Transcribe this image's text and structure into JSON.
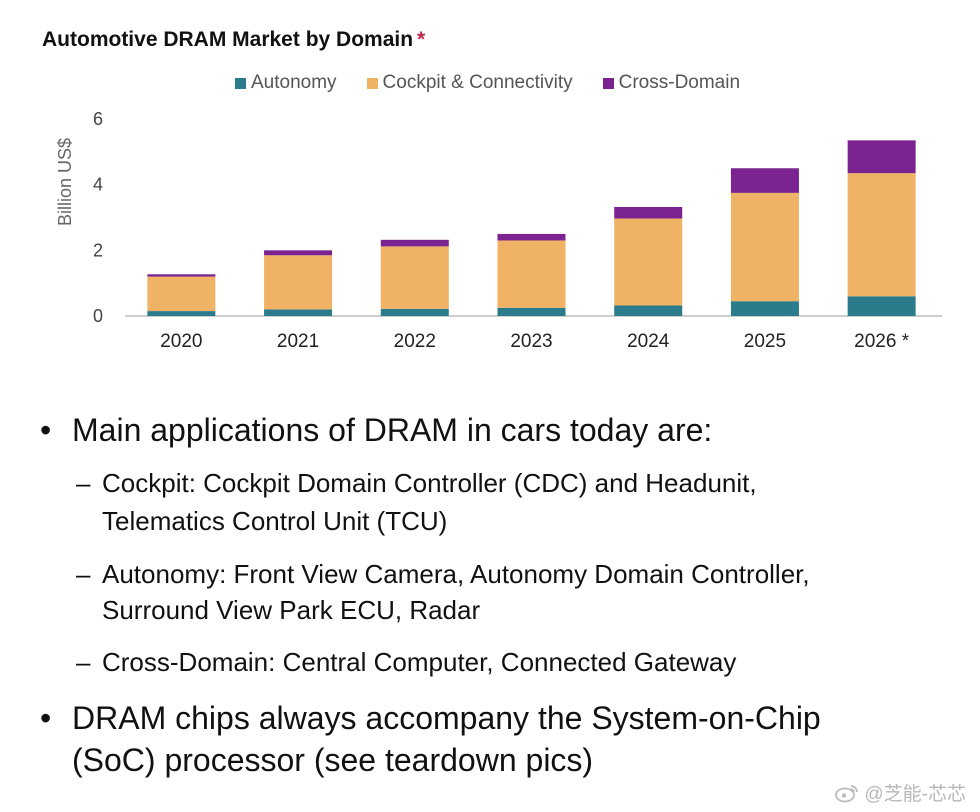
{
  "chart_data": {
    "type": "bar",
    "stacked": true,
    "title": "Automotive DRAM Market by Domain",
    "title_marker": "*",
    "ylabel": "Billion US$",
    "xlabel": "",
    "ylim": [
      0,
      6
    ],
    "yticks": [
      0,
      2,
      4,
      6
    ],
    "grid": false,
    "legend_position": "top",
    "categories": [
      "2020",
      "2021",
      "2022",
      "2023",
      "2024",
      "2025",
      "2026 *"
    ],
    "series": [
      {
        "name": "Autonomy",
        "color": "#2a7b8c",
        "values": [
          0.15,
          0.2,
          0.22,
          0.25,
          0.32,
          0.45,
          0.6
        ]
      },
      {
        "name": "Cockpit & Connectivity",
        "color": "#f0b264",
        "values": [
          1.05,
          1.65,
          1.9,
          2.05,
          2.65,
          3.3,
          3.75
        ]
      },
      {
        "name": "Cross-Domain",
        "color": "#7b2390",
        "values": [
          0.07,
          0.15,
          0.2,
          0.2,
          0.35,
          0.75,
          1.0
        ]
      }
    ]
  },
  "bullets": [
    {
      "text": "Main applications of DRAM in cars today are:",
      "subitems": [
        {
          "lines": [
            "Cockpit: Cockpit Domain Controller (CDC) and Headunit,",
            "Telematics Control Unit (TCU)"
          ]
        },
        {
          "lines": [
            "Autonomy: Front View Camera, Autonomy Domain Controller,",
            "Surround View Park ECU, Radar"
          ]
        },
        {
          "lines": [
            "Cross-Domain: Central Computer, Connected Gateway"
          ]
        }
      ]
    },
    {
      "lines": [
        "DRAM chips always accompany the System-on-Chip",
        "(SoC) processor (see teardown pics)"
      ]
    }
  ],
  "watermark": "@芝能-芯芯"
}
